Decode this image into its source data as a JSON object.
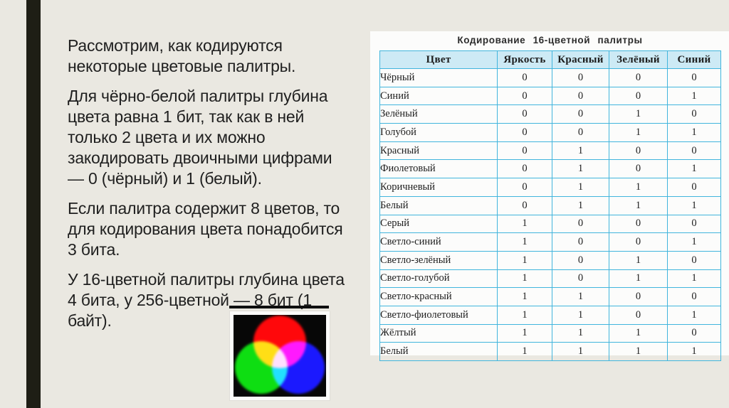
{
  "left_panel": {
    "paragraphs": [
      [
        "Рассмотрим, как кодируются",
        "некоторые цветовые палитры."
      ],
      [
        "Для чёрно-белой палитры глубина",
        "цвета равна 1 бит, так как в ней",
        "только 2 цвета и их можно",
        "закодировать двоичными цифрами",
        "— 0 (чёрный) и 1 (белый)."
      ],
      [
        "Если палитра содержит 8 цветов, то",
        "для кодирования цвета понадобится",
        "3 бита."
      ],
      [
        "У 16-цветной палитры глубина цвета",
        "4 бита, у 256-цветной — 8 бит (1",
        "байт)."
      ]
    ],
    "underlined_fragment": "— 8 бит (1"
  },
  "rgb_image": {
    "name": "rgb-additive-color-model",
    "circle_colors": {
      "red": "#ff0104",
      "green": "#07dd0b",
      "blue": "#1512fe"
    },
    "background": "#070707"
  },
  "table": {
    "title": "Кодирование  16-цветной  палитры",
    "headers": [
      "Цвет",
      "Яркость",
      "Красный",
      "Зелёный",
      "Синий"
    ],
    "rows": [
      {
        "color": "Чёрный",
        "bits": [
          "0",
          "0",
          "0",
          "0"
        ]
      },
      {
        "color": "Синий",
        "bits": [
          "0",
          "0",
          "0",
          "1"
        ]
      },
      {
        "color": "Зелёный",
        "bits": [
          "0",
          "0",
          "1",
          "0"
        ]
      },
      {
        "color": "Голубой",
        "bits": [
          "0",
          "0",
          "1",
          "1"
        ]
      },
      {
        "color": "Красный",
        "bits": [
          "0",
          "1",
          "0",
          "0"
        ]
      },
      {
        "color": "Фиолетовый",
        "bits": [
          "0",
          "1",
          "0",
          "1"
        ]
      },
      {
        "color": "Коричневый",
        "bits": [
          "0",
          "1",
          "1",
          "0"
        ]
      },
      {
        "color": "Белый",
        "bits": [
          "0",
          "1",
          "1",
          "1"
        ]
      },
      {
        "color": "Серый",
        "bits": [
          "1",
          "0",
          "0",
          "0"
        ]
      },
      {
        "color": "Светло-синий",
        "bits": [
          "1",
          "0",
          "0",
          "1"
        ]
      },
      {
        "color": "Светло-зелёный",
        "bits": [
          "1",
          "0",
          "1",
          "0"
        ]
      },
      {
        "color": "Светло-голубой",
        "bits": [
          "1",
          "0",
          "1",
          "1"
        ]
      },
      {
        "color": "Светло-красный",
        "bits": [
          "1",
          "1",
          "0",
          "0"
        ]
      },
      {
        "color": "Светло-фиолетовый",
        "bits": [
          "1",
          "1",
          "0",
          "1"
        ]
      },
      {
        "color": "Жёлтый",
        "bits": [
          "1",
          "1",
          "1",
          "0"
        ]
      },
      {
        "color": "Белый",
        "bits": [
          "1",
          "1",
          "1",
          "1"
        ]
      }
    ]
  },
  "palette": {
    "page_background": "#eae8e1",
    "accent_bar": "#1e1e15",
    "panel_background": "#fcfcfb",
    "table_border": "#41b5dd",
    "table_header_background": "#cdeaf5",
    "text_color": "#1f1f1f"
  }
}
